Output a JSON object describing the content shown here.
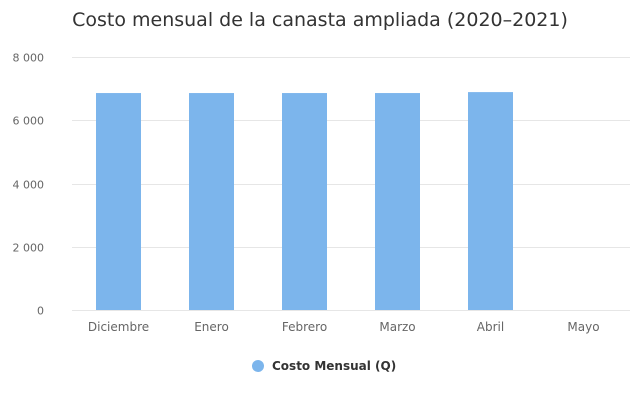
{
  "chart_data": {
    "type": "bar",
    "title": "Costo mensual de la canasta ampliada (2020–2021)",
    "categories": [
      "Diciembre",
      "Enero",
      "Febrero",
      "Marzo",
      "Abril",
      "Mayo"
    ],
    "series": [
      {
        "name": "Costo Mensual (Q)",
        "values": [
          6860,
          6860,
          6860,
          6860,
          6890,
          null
        ]
      }
    ],
    "ylim": [
      0,
      8000
    ],
    "yticks": [
      "0",
      "2 000",
      "4 000",
      "6 000",
      "8 000"
    ],
    "ytick_values": [
      0,
      2000,
      4000,
      6000,
      8000
    ],
    "grid": true,
    "legend": "bottom-center",
    "colors": {
      "bar": "#7cb5ec",
      "grid": "#e6e6e6",
      "text": "#666666"
    }
  }
}
